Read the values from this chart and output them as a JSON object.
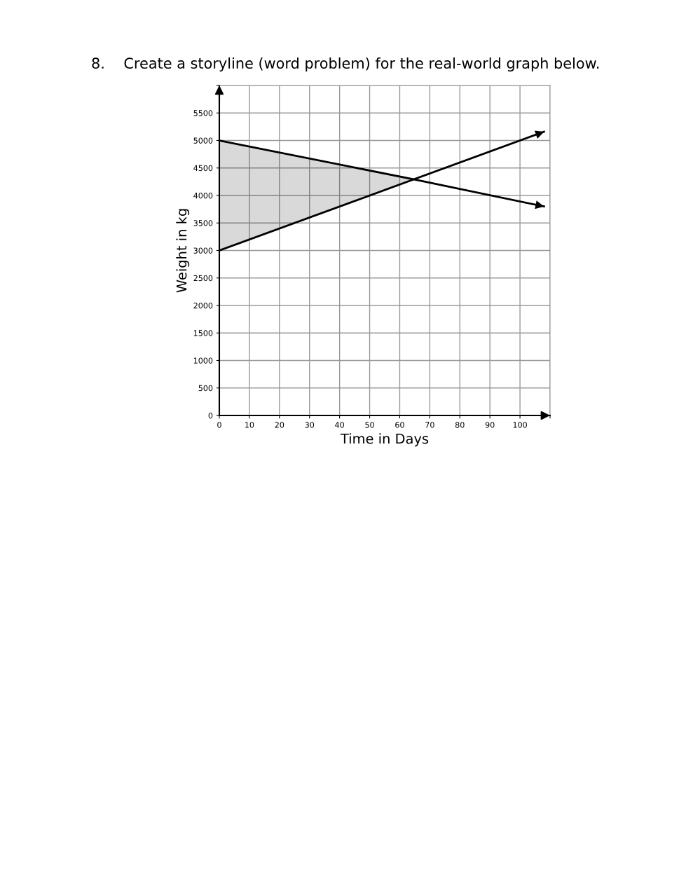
{
  "chart_data": {
    "type": "line",
    "title": "8.    Create a storyline (word problem) for the real-world graph below.",
    "xlabel": "Time in Days",
    "ylabel": "Weight in kg",
    "xlim": [
      0,
      110
    ],
    "ylim": [
      0,
      6000
    ],
    "xticks": [
      0,
      10,
      20,
      30,
      40,
      50,
      60,
      70,
      80,
      90,
      100,
      {
        "value": 110,
        "label": null
      }
    ],
    "yticks": [
      0,
      500,
      1000,
      1500,
      2000,
      2500,
      3000,
      3500,
      4000,
      4500,
      5000,
      5500,
      {
        "value": 6000,
        "label": null
      }
    ],
    "grid": true,
    "marker": "none",
    "line_style": "solid",
    "series": [
      {
        "color": "#000000",
        "x": [
          0,
          64,
          108
        ],
        "values": [
          5000,
          4300,
          3800
        ],
        "lower": [
          3000,
          4300,
          null
        ],
        "upper": [
          5000,
          4300,
          null
        ]
      },
      {
        "color": "#000000",
        "x": [
          0,
          108
        ],
        "values": [
          3000,
          5160
        ]
      }
    ]
  }
}
